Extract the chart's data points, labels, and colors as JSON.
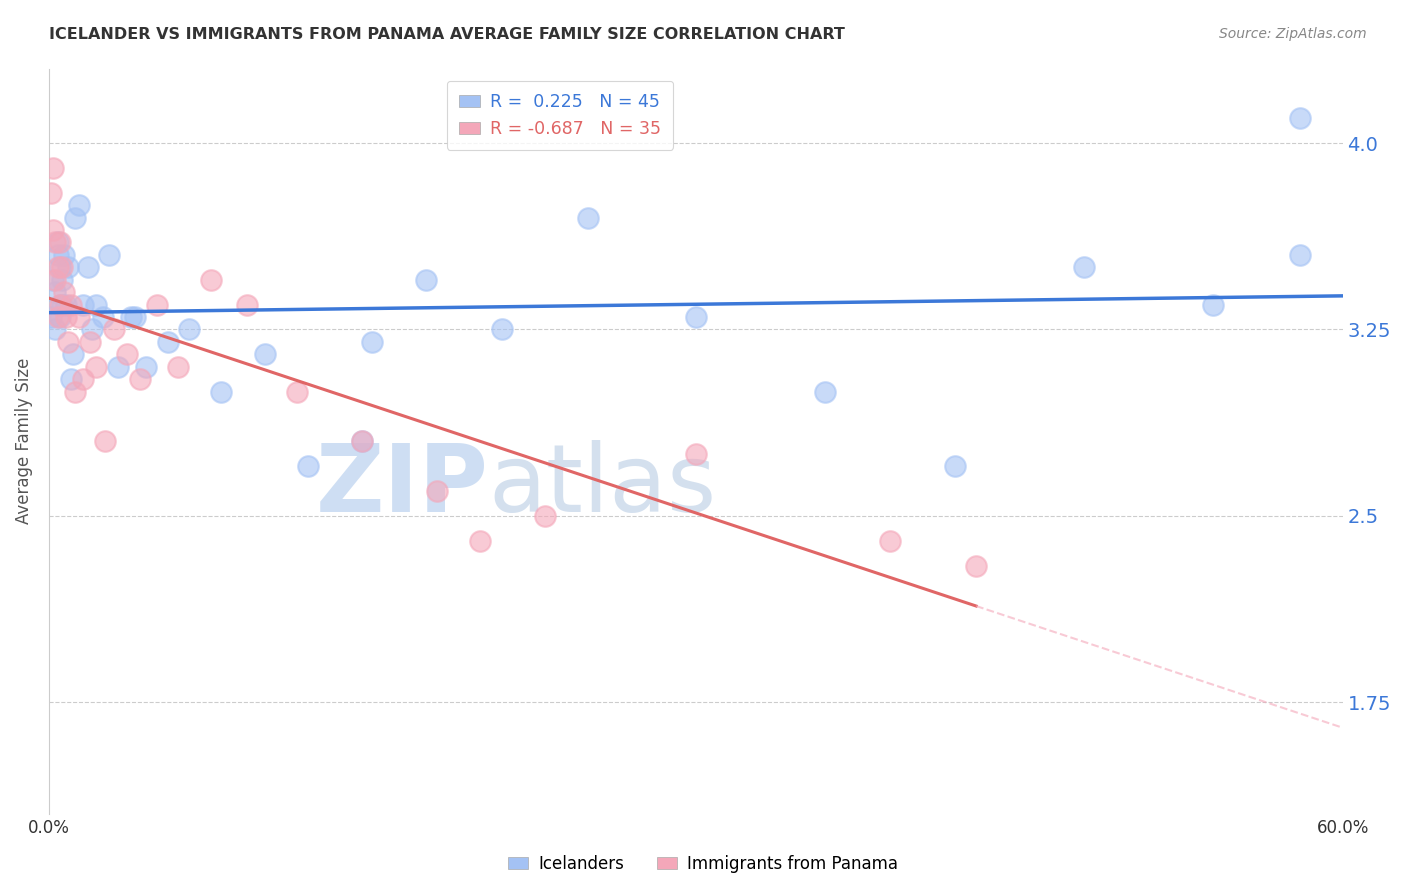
{
  "title": "ICELANDER VS IMMIGRANTS FROM PANAMA AVERAGE FAMILY SIZE CORRELATION CHART",
  "source": "Source: ZipAtlas.com",
  "ylabel": "Average Family Size",
  "yticks": [
    1.75,
    2.5,
    3.25,
    4.0
  ],
  "xlim": [
    0.0,
    0.6
  ],
  "ylim": [
    1.3,
    4.3
  ],
  "blue_color": "#a4c2f4",
  "pink_color": "#f4a7b9",
  "blue_line_color": "#3c78d8",
  "pink_line_color": "#e06666",
  "pink_line_color_dash": "#f4a7b9",
  "watermark_zip": "ZIP",
  "watermark_atlas": "atlas",
  "icelanders_x": [
    0.001,
    0.002,
    0.003,
    0.003,
    0.004,
    0.004,
    0.005,
    0.005,
    0.005,
    0.006,
    0.006,
    0.007,
    0.008,
    0.009,
    0.01,
    0.011,
    0.012,
    0.014,
    0.016,
    0.018,
    0.02,
    0.022,
    0.025,
    0.028,
    0.032,
    0.038,
    0.045,
    0.055,
    0.065,
    0.08,
    0.1,
    0.12,
    0.145,
    0.175,
    0.21,
    0.25,
    0.3,
    0.36,
    0.42,
    0.48,
    0.54,
    0.58,
    0.04,
    0.15,
    0.58
  ],
  "icelanders_y": [
    3.3,
    3.45,
    3.25,
    3.4,
    3.6,
    3.55,
    3.35,
    3.3,
    3.5,
    3.45,
    3.35,
    3.55,
    3.35,
    3.5,
    3.05,
    3.15,
    3.7,
    3.75,
    3.35,
    3.5,
    3.25,
    3.35,
    3.3,
    3.55,
    3.1,
    3.3,
    3.1,
    3.2,
    3.25,
    3.0,
    3.15,
    2.7,
    2.8,
    3.45,
    3.25,
    3.7,
    3.3,
    3.0,
    2.7,
    3.5,
    3.35,
    3.55,
    3.3,
    3.2,
    4.1
  ],
  "panama_x": [
    0.001,
    0.002,
    0.002,
    0.003,
    0.003,
    0.004,
    0.004,
    0.005,
    0.005,
    0.006,
    0.007,
    0.008,
    0.009,
    0.01,
    0.012,
    0.014,
    0.016,
    0.019,
    0.022,
    0.026,
    0.03,
    0.036,
    0.042,
    0.05,
    0.06,
    0.075,
    0.092,
    0.115,
    0.145,
    0.18,
    0.23,
    0.3,
    0.39,
    0.2,
    0.43
  ],
  "panama_y": [
    3.8,
    3.9,
    3.65,
    3.6,
    3.45,
    3.5,
    3.3,
    3.6,
    3.35,
    3.5,
    3.4,
    3.3,
    3.2,
    3.35,
    3.0,
    3.3,
    3.05,
    3.2,
    3.1,
    2.8,
    3.25,
    3.15,
    3.05,
    3.35,
    3.1,
    3.45,
    3.35,
    3.0,
    2.8,
    2.6,
    2.5,
    2.75,
    2.4,
    2.4,
    2.3
  ]
}
